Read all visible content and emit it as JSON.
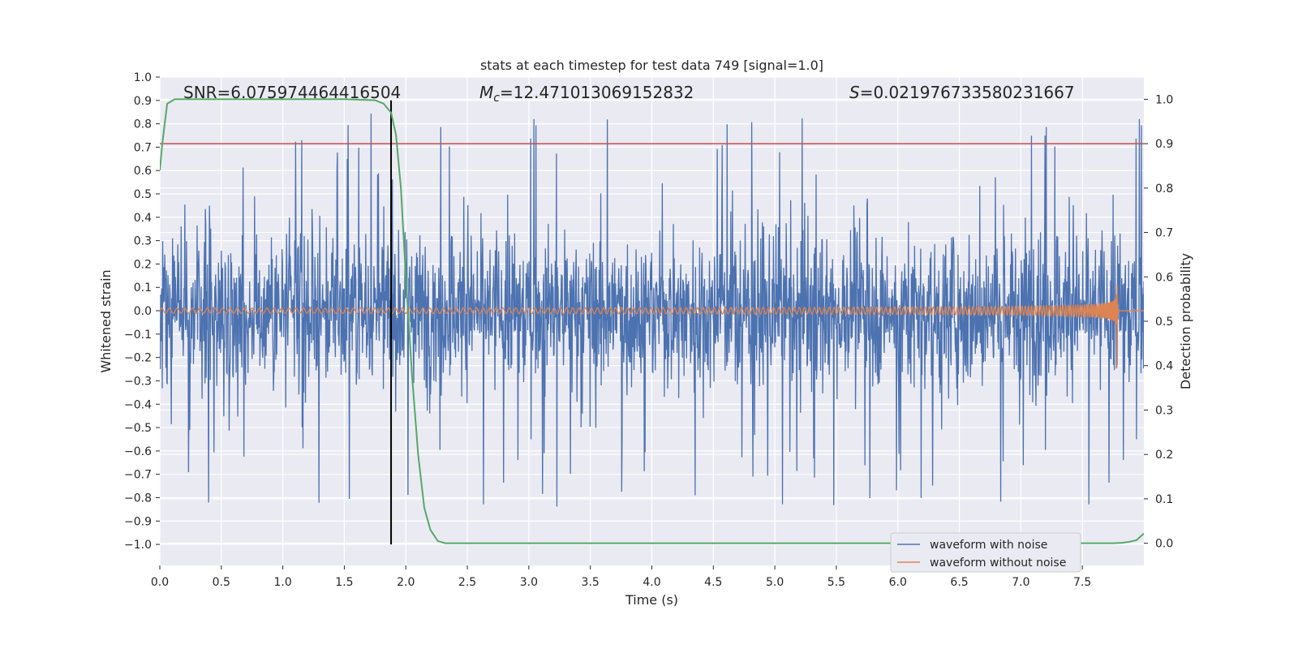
{
  "chart_data": {
    "type": "line",
    "title": "stats at each timestep for test data 749 [signal=1.0]",
    "xlabel": "Time (s)",
    "ylabel_left": "Whitened strain",
    "ylabel_right": "Detection probability",
    "xlim": [
      0.0,
      8.0
    ],
    "ylim_left": [
      -1.09,
      1.0
    ],
    "ylim_right": [
      -0.05,
      1.05
    ],
    "x_ticks": [
      "0.0",
      "0.5",
      "1.0",
      "1.5",
      "2.0",
      "2.5",
      "3.0",
      "3.5",
      "4.0",
      "4.5",
      "5.0",
      "5.5",
      "6.0",
      "6.5",
      "7.0",
      "7.5"
    ],
    "y_left_ticks": [
      "1.0",
      "0.9",
      "0.8",
      "0.7",
      "0.6",
      "0.5",
      "0.4",
      "0.3",
      "0.2",
      "0.1",
      "0.0",
      "−0.1",
      "−0.2",
      "−0.3",
      "−0.4",
      "−0.5",
      "−0.6",
      "−0.7",
      "−0.8",
      "−0.9",
      "−1.0"
    ],
    "y_right_ticks": [
      "0.0",
      "0.1",
      "0.2",
      "0.3",
      "0.4",
      "0.5",
      "0.6",
      "0.7",
      "0.8",
      "0.9",
      "1.0"
    ],
    "grid": true,
    "annotations": {
      "snr_label": "SNR=6.075974464416504",
      "mc_symbol": "M",
      "mc_subscript": "c",
      "mc_value": "=12.471013069152832",
      "s_symbol": "S",
      "s_value": "=0.021976733580231667"
    },
    "threshold_line": {
      "axis": "right",
      "y": 0.9,
      "color": "#c44e52"
    },
    "vertical_line": {
      "x": 1.88,
      "y_range_left": [
        -1.0,
        0.9
      ],
      "color": "#000000"
    },
    "legend": {
      "placement": "lower-right",
      "entries": [
        {
          "label": "waveform with noise",
          "color": "#4c72b0"
        },
        {
          "label": "waveform without noise",
          "color": "#dd8452"
        }
      ]
    },
    "series": [
      {
        "name": "waveform with noise",
        "axis": "left",
        "color": "#4c72b0",
        "description_type": "noise",
        "x_range": [
          0.0,
          8.0
        ],
        "typical_amplitude": 0.3,
        "max": 0.9,
        "min": -0.98
      },
      {
        "name": "waveform without noise",
        "axis": "left",
        "color": "#dd8452",
        "description_type": "chirp",
        "x_range": [
          0.0,
          7.82
        ],
        "merger_x": 7.78,
        "peak_amplitude": 0.33
      },
      {
        "axis": "right",
        "color": "#55a868",
        "x": [
          0.0,
          0.02,
          0.06,
          0.12,
          0.2,
          0.5,
          1.0,
          1.5,
          1.75,
          1.82,
          1.88,
          1.92,
          1.96,
          2.0,
          2.05,
          2.1,
          2.15,
          2.2,
          2.26,
          2.32,
          2.5,
          3.0,
          4.0,
          5.0,
          6.0,
          7.0,
          7.6,
          7.75,
          7.82,
          7.88,
          7.94,
          8.0
        ],
        "values": [
          0.84,
          0.9,
          0.99,
          1.0,
          1.0,
          1.0,
          1.0,
          1.0,
          0.998,
          0.99,
          0.97,
          0.92,
          0.8,
          0.6,
          0.38,
          0.2,
          0.08,
          0.03,
          0.005,
          0.0,
          0.0,
          0.0,
          0.0,
          0.0,
          0.0,
          0.0,
          0.0,
          0.0,
          0.001,
          0.003,
          0.007,
          0.022
        ]
      }
    ]
  }
}
